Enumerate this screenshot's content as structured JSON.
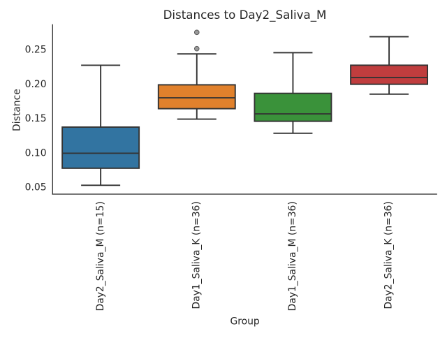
{
  "chart_data": {
    "type": "box",
    "title": "Distances to Day2_Saliva_M",
    "xlabel": "Group",
    "ylabel": "Distance",
    "ylim": [
      0.039,
      0.286
    ],
    "yticks": {
      "values": [
        0.05,
        0.1,
        0.15,
        0.2,
        0.25
      ],
      "labels": [
        "0.05",
        "0.10",
        "0.15",
        "0.20",
        "0.25"
      ]
    },
    "grid": false,
    "legend": false,
    "x_tick_rotation": 90,
    "categories": [
      "Day2_Saliva_M (n=15)",
      "Day1_Saliva_K (n=36)",
      "Day1_Saliva_M (n=36)",
      "Day2_Saliva_K (n=36)"
    ],
    "groups": [
      {
        "label": "Day2_Saliva_M (n=15)",
        "color": "#3274A1",
        "whislo": 0.0519,
        "q1": 0.0767,
        "med": 0.0985,
        "q3": 0.1365,
        "whishi": 0.2264,
        "fliers": []
      },
      {
        "label": "Day1_Saliva_K (n=36)",
        "color": "#E1812C",
        "whislo": 0.1481,
        "q1": 0.1633,
        "med": 0.1791,
        "q3": 0.198,
        "whishi": 0.243,
        "fliers": [
          0.2506,
          0.2743
        ]
      },
      {
        "label": "Day1_Saliva_M (n=36)",
        "color": "#3A923A",
        "whislo": 0.1276,
        "q1": 0.145,
        "med": 0.1557,
        "q3": 0.1856,
        "whishi": 0.2447,
        "fliers": []
      },
      {
        "label": "Day2_Saliva_K (n=36)",
        "color": "#C03D3E",
        "whislo": 0.1844,
        "q1": 0.1988,
        "med": 0.2085,
        "q3": 0.2265,
        "whishi": 0.268,
        "fliers": []
      }
    ],
    "style": {
      "background": "#ffffff",
      "spine_color": "#262626",
      "box_line_color": "#333333",
      "text_color": "#262626",
      "flier_fill": "#9a9a9a",
      "flier_edge": "#5a5a5a"
    }
  }
}
